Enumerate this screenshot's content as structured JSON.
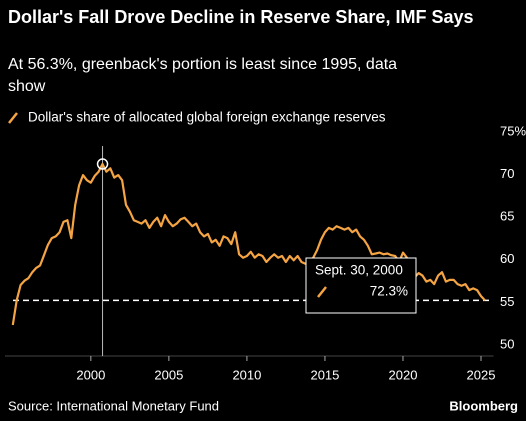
{
  "chart_data": {
    "type": "line",
    "title": "Dollar's Fall Drove Decline in Reserve Share, IMF Says",
    "subtitle": "At 56.3%, greenback's portion is least since 1995, data show",
    "source": "Source: International Monetary Fund",
    "brand": "Bloomberg",
    "x": [
      1995.0,
      1995.25,
      1995.5,
      1995.75,
      1996.0,
      1996.25,
      1996.5,
      1996.75,
      1997.0,
      1997.25,
      1997.5,
      1997.75,
      1998.0,
      1998.25,
      1998.5,
      1998.75,
      1999.0,
      1999.25,
      1999.5,
      1999.75,
      2000.0,
      2000.25,
      2000.5,
      2000.75,
      2001.0,
      2001.25,
      2001.5,
      2001.75,
      2002.0,
      2002.25,
      2002.5,
      2002.75,
      2003.0,
      2003.25,
      2003.5,
      2003.75,
      2004.0,
      2004.25,
      2004.5,
      2004.75,
      2005.0,
      2005.25,
      2005.5,
      2005.75,
      2006.0,
      2006.25,
      2006.5,
      2006.75,
      2007.0,
      2007.25,
      2007.5,
      2007.75,
      2008.0,
      2008.25,
      2008.5,
      2008.75,
      2009.0,
      2009.25,
      2009.5,
      2009.75,
      2010.0,
      2010.25,
      2010.5,
      2010.75,
      2011.0,
      2011.25,
      2011.5,
      2011.75,
      2012.0,
      2012.25,
      2012.5,
      2012.75,
      2013.0,
      2013.25,
      2013.5,
      2013.75,
      2014.0,
      2014.25,
      2014.5,
      2014.75,
      2015.0,
      2015.25,
      2015.5,
      2015.75,
      2016.0,
      2016.25,
      2016.5,
      2016.75,
      2017.0,
      2017.25,
      2017.5,
      2017.75,
      2018.0,
      2018.25,
      2018.5,
      2018.75,
      2019.0,
      2019.25,
      2019.5,
      2019.75,
      2020.0,
      2020.25,
      2020.5,
      2020.75,
      2021.0,
      2021.25,
      2021.5,
      2021.75,
      2022.0,
      2022.25,
      2022.5,
      2022.75,
      2023.0,
      2023.25,
      2023.5,
      2023.75,
      2024.0,
      2024.25,
      2024.5,
      2024.75,
      2025.0,
      2025.25
    ],
    "series": [
      {
        "name": "Dollar's share of allocated global foreign exchange reserves",
        "color": "#f5a443",
        "values": [
          53.4,
          56.3,
          58.1,
          58.6,
          58.9,
          59.6,
          60.1,
          60.4,
          61.6,
          62.8,
          63.6,
          63.8,
          64.3,
          65.5,
          65.7,
          63.6,
          67.5,
          69.8,
          71.0,
          70.4,
          70.1,
          70.9,
          71.4,
          72.3,
          71.4,
          71.8,
          70.7,
          71.0,
          70.4,
          67.5,
          66.7,
          65.7,
          65.5,
          65.3,
          65.7,
          64.8,
          65.5,
          66.0,
          65.0,
          66.3,
          65.5,
          65.0,
          65.3,
          65.8,
          66.0,
          65.5,
          65.0,
          65.3,
          64.3,
          63.8,
          64.1,
          63.1,
          63.4,
          62.7,
          63.8,
          63.6,
          62.9,
          64.3,
          61.7,
          61.3,
          61.5,
          62.0,
          61.3,
          61.7,
          61.5,
          60.8,
          61.3,
          61.7,
          61.3,
          61.5,
          60.8,
          61.5,
          61.0,
          61.5,
          60.8,
          60.6,
          60.8,
          61.3,
          62.2,
          63.4,
          64.3,
          64.8,
          64.6,
          65.0,
          64.8,
          64.6,
          64.8,
          64.3,
          64.6,
          63.8,
          63.4,
          62.7,
          61.7,
          61.8,
          61.9,
          61.7,
          61.8,
          61.6,
          61.5,
          60.8,
          61.9,
          61.3,
          60.5,
          59.0,
          59.5,
          59.2,
          58.5,
          58.7,
          58.2,
          59.2,
          59.6,
          58.5,
          58.7,
          58.7,
          58.2,
          58.0,
          58.2,
          57.5,
          57.7,
          57.5,
          56.8,
          56.3
        ]
      }
    ],
    "xlim": [
      1994.5,
      2025.8
    ],
    "xticks": [
      2000,
      2005,
      2010,
      2015,
      2020,
      2025
    ],
    "ylim": [
      50,
      75
    ],
    "yticks": [
      {
        "value": 75,
        "label": "75%"
      },
      70,
      65,
      60,
      55,
      50
    ],
    "grid": false,
    "reference_line": 56.3,
    "annotation": {
      "x": 2000.75,
      "date": "Sept. 30, 2000",
      "value": 72.3,
      "label": "72.3%"
    }
  }
}
